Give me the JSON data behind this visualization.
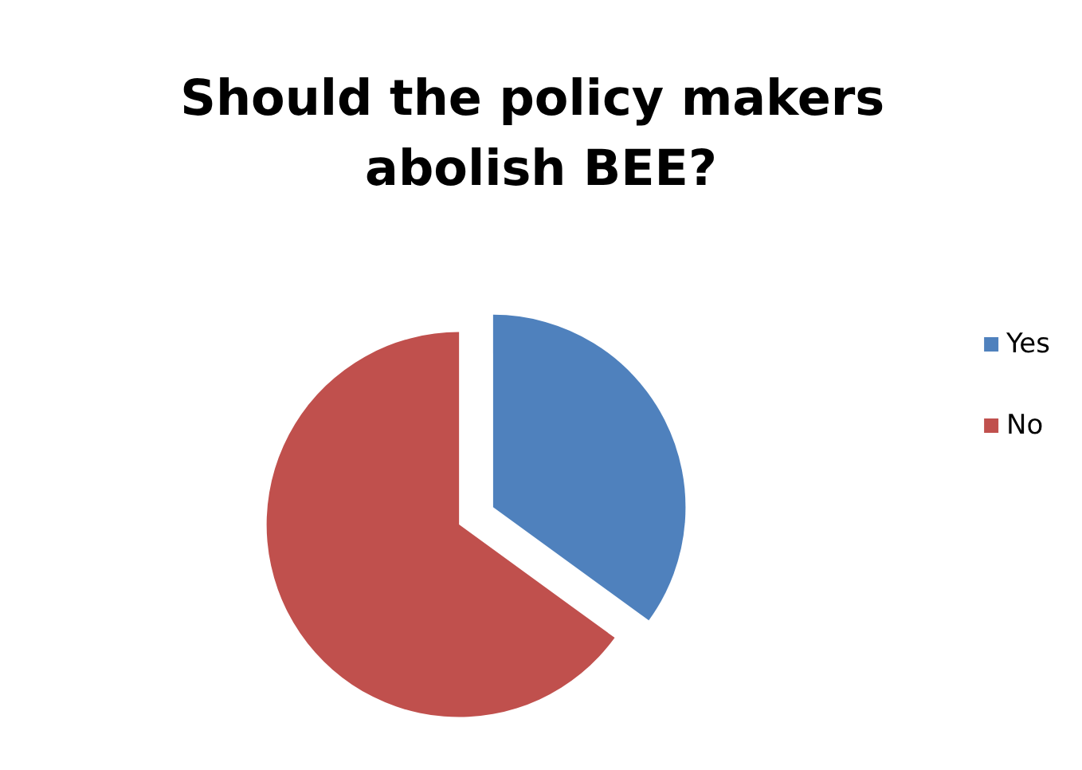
{
  "chart_data": {
    "type": "pie",
    "title": "Should the policy makers abolish BEE?",
    "categories": [
      "Yes",
      "No"
    ],
    "values": [
      35,
      65
    ],
    "colors": [
      "#4f81bd",
      "#c0504d"
    ],
    "legend": "right"
  }
}
